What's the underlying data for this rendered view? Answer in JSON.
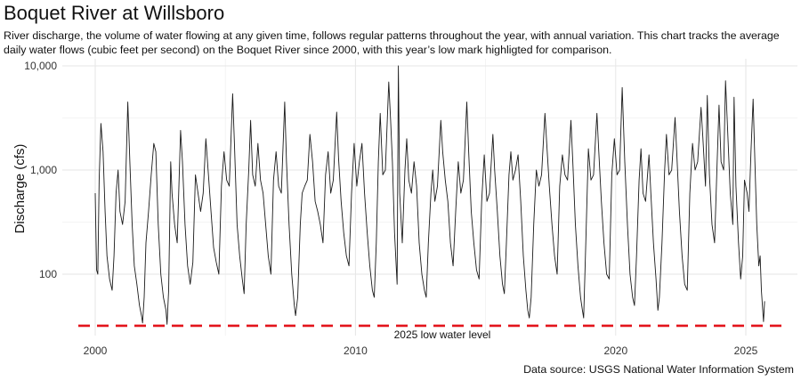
{
  "title": "Boquet River at Willsboro",
  "subtitle": "River discharge, the volume of water flowing at any given time, follows regular patterns throughout the year, with annual variation. This chart tracks the average daily water flows (cubic feet per second) on the Boquet River since 2000, with this year’s low mark highligted for comparison.",
  "caption": "Data source: USGS National Water Information System",
  "chart_data": {
    "type": "line",
    "title": "Boquet River at Willsboro",
    "xlabel": "",
    "ylabel": "Discharge (cfs)",
    "y_scale": "log10",
    "xlim": [
      1999.6,
      2026.0
    ],
    "ylim": [
      28,
      10000
    ],
    "x_ticks": [
      2000,
      2010,
      2020,
      2025
    ],
    "x_tick_labels": [
      "2000",
      "2010",
      "2020",
      "2025"
    ],
    "y_ticks": [
      100,
      1000,
      10000
    ],
    "y_tick_labels": [
      "100",
      "1,000",
      "10,000"
    ],
    "grid": true,
    "legend": "none",
    "line_color": "#1a1a1a",
    "reference_line": {
      "value": 32,
      "label": "2025 low water level",
      "color": "#e3141b",
      "style": "dashed"
    },
    "series": [
      {
        "values": [
          [
            2000.0,
            600
          ],
          [
            2000.05,
            110
          ],
          [
            2000.1,
            100
          ],
          [
            2000.15,
            800
          ],
          [
            2000.22,
            2800
          ],
          [
            2000.3,
            1500
          ],
          [
            2000.38,
            400
          ],
          [
            2000.45,
            150
          ],
          [
            2000.55,
            90
          ],
          [
            2000.65,
            70
          ],
          [
            2000.72,
            150
          ],
          [
            2000.8,
            600
          ],
          [
            2000.88,
            1000
          ],
          [
            2000.95,
            400
          ],
          [
            2001.05,
            300
          ],
          [
            2001.15,
            500
          ],
          [
            2001.25,
            4500
          ],
          [
            2001.33,
            1200
          ],
          [
            2001.42,
            300
          ],
          [
            2001.5,
            120
          ],
          [
            2001.6,
            80
          ],
          [
            2001.7,
            50
          ],
          [
            2001.78,
            40
          ],
          [
            2001.82,
            34
          ],
          [
            2001.88,
            60
          ],
          [
            2001.95,
            200
          ],
          [
            2002.05,
            400
          ],
          [
            2002.15,
            900
          ],
          [
            2002.25,
            1800
          ],
          [
            2002.33,
            1500
          ],
          [
            2002.42,
            300
          ],
          [
            2002.52,
            100
          ],
          [
            2002.62,
            60
          ],
          [
            2002.72,
            45
          ],
          [
            2002.76,
            33
          ],
          [
            2002.82,
            70
          ],
          [
            2002.9,
            1200
          ],
          [
            2002.95,
            600
          ],
          [
            2003.05,
            300
          ],
          [
            2003.15,
            200
          ],
          [
            2003.28,
            2400
          ],
          [
            2003.35,
            1200
          ],
          [
            2003.45,
            300
          ],
          [
            2003.55,
            120
          ],
          [
            2003.65,
            80
          ],
          [
            2003.75,
            130
          ],
          [
            2003.85,
            900
          ],
          [
            2003.95,
            600
          ],
          [
            2004.05,
            400
          ],
          [
            2004.15,
            600
          ],
          [
            2004.25,
            2000
          ],
          [
            2004.35,
            900
          ],
          [
            2004.45,
            400
          ],
          [
            2004.55,
            180
          ],
          [
            2004.65,
            130
          ],
          [
            2004.75,
            100
          ],
          [
            2004.85,
            700
          ],
          [
            2004.95,
            1500
          ],
          [
            2005.05,
            800
          ],
          [
            2005.15,
            700
          ],
          [
            2005.28,
            5400
          ],
          [
            2005.35,
            1800
          ],
          [
            2005.45,
            300
          ],
          [
            2005.55,
            150
          ],
          [
            2005.65,
            90
          ],
          [
            2005.72,
            65
          ],
          [
            2005.8,
            300
          ],
          [
            2005.9,
            1000
          ],
          [
            2005.97,
            3000
          ],
          [
            2006.05,
            900
          ],
          [
            2006.15,
            700
          ],
          [
            2006.25,
            1800
          ],
          [
            2006.35,
            800
          ],
          [
            2006.45,
            600
          ],
          [
            2006.55,
            300
          ],
          [
            2006.65,
            150
          ],
          [
            2006.75,
            100
          ],
          [
            2006.85,
            800
          ],
          [
            2006.95,
            1500
          ],
          [
            2007.05,
            700
          ],
          [
            2007.15,
            600
          ],
          [
            2007.28,
            4500
          ],
          [
            2007.35,
            1200
          ],
          [
            2007.45,
            300
          ],
          [
            2007.55,
            100
          ],
          [
            2007.65,
            50
          ],
          [
            2007.7,
            40
          ],
          [
            2007.78,
            60
          ],
          [
            2007.88,
            300
          ],
          [
            2007.95,
            600
          ],
          [
            2008.05,
            700
          ],
          [
            2008.15,
            800
          ],
          [
            2008.25,
            2200
          ],
          [
            2008.35,
            1200
          ],
          [
            2008.45,
            500
          ],
          [
            2008.55,
            400
          ],
          [
            2008.65,
            300
          ],
          [
            2008.75,
            200
          ],
          [
            2008.85,
            900
          ],
          [
            2008.95,
            1500
          ],
          [
            2009.05,
            600
          ],
          [
            2009.15,
            800
          ],
          [
            2009.28,
            3600
          ],
          [
            2009.35,
            1300
          ],
          [
            2009.45,
            500
          ],
          [
            2009.55,
            250
          ],
          [
            2009.65,
            150
          ],
          [
            2009.75,
            120
          ],
          [
            2009.85,
            600
          ],
          [
            2009.95,
            1800
          ],
          [
            2010.05,
            700
          ],
          [
            2010.15,
            1200
          ],
          [
            2010.25,
            1800
          ],
          [
            2010.35,
            600
          ],
          [
            2010.45,
            250
          ],
          [
            2010.55,
            120
          ],
          [
            2010.65,
            70
          ],
          [
            2010.72,
            60
          ],
          [
            2010.8,
            200
          ],
          [
            2010.88,
            1200
          ],
          [
            2010.95,
            3500
          ],
          [
            2011.05,
            900
          ],
          [
            2011.15,
            1000
          ],
          [
            2011.28,
            7000
          ],
          [
            2011.35,
            3000
          ],
          [
            2011.42,
            1200
          ],
          [
            2011.5,
            250
          ],
          [
            2011.6,
            80
          ],
          [
            2011.65,
            10000
          ],
          [
            2011.7,
            600
          ],
          [
            2011.8,
            200
          ],
          [
            2011.9,
            1000
          ],
          [
            2011.97,
            2000
          ],
          [
            2012.05,
            800
          ],
          [
            2012.15,
            600
          ],
          [
            2012.25,
            1200
          ],
          [
            2012.35,
            700
          ],
          [
            2012.45,
            200
          ],
          [
            2012.55,
            100
          ],
          [
            2012.65,
            70
          ],
          [
            2012.72,
            60
          ],
          [
            2012.8,
            200
          ],
          [
            2012.9,
            600
          ],
          [
            2012.97,
            1000
          ],
          [
            2013.05,
            500
          ],
          [
            2013.15,
            700
          ],
          [
            2013.28,
            3000
          ],
          [
            2013.35,
            1500
          ],
          [
            2013.45,
            800
          ],
          [
            2013.55,
            500
          ],
          [
            2013.65,
            200
          ],
          [
            2013.75,
            120
          ],
          [
            2013.85,
            400
          ],
          [
            2013.95,
            1200
          ],
          [
            2014.05,
            600
          ],
          [
            2014.15,
            800
          ],
          [
            2014.28,
            4500
          ],
          [
            2014.35,
            1500
          ],
          [
            2014.45,
            400
          ],
          [
            2014.55,
            200
          ],
          [
            2014.65,
            110
          ],
          [
            2014.75,
            90
          ],
          [
            2014.85,
            500
          ],
          [
            2014.95,
            1400
          ],
          [
            2015.05,
            500
          ],
          [
            2015.15,
            600
          ],
          [
            2015.28,
            2200
          ],
          [
            2015.35,
            1000
          ],
          [
            2015.45,
            400
          ],
          [
            2015.55,
            150
          ],
          [
            2015.65,
            80
          ],
          [
            2015.72,
            65
          ],
          [
            2015.8,
            200
          ],
          [
            2015.9,
            900
          ],
          [
            2015.97,
            1500
          ],
          [
            2016.05,
            800
          ],
          [
            2016.15,
            1000
          ],
          [
            2016.25,
            1400
          ],
          [
            2016.35,
            500
          ],
          [
            2016.45,
            150
          ],
          [
            2016.55,
            70
          ],
          [
            2016.62,
            45
          ],
          [
            2016.68,
            38
          ],
          [
            2016.75,
            60
          ],
          [
            2016.85,
            300
          ],
          [
            2016.95,
            1000
          ],
          [
            2017.05,
            700
          ],
          [
            2017.15,
            900
          ],
          [
            2017.28,
            3500
          ],
          [
            2017.35,
            1800
          ],
          [
            2017.45,
            700
          ],
          [
            2017.55,
            300
          ],
          [
            2017.65,
            150
          ],
          [
            2017.75,
            100
          ],
          [
            2017.85,
            700
          ],
          [
            2017.95,
            1400
          ],
          [
            2018.05,
            900
          ],
          [
            2018.15,
            800
          ],
          [
            2018.28,
            3000
          ],
          [
            2018.35,
            1200
          ],
          [
            2018.45,
            300
          ],
          [
            2018.55,
            120
          ],
          [
            2018.65,
            60
          ],
          [
            2018.72,
            45
          ],
          [
            2018.77,
            38
          ],
          [
            2018.85,
            200
          ],
          [
            2018.95,
            1600
          ],
          [
            2019.05,
            800
          ],
          [
            2019.15,
            900
          ],
          [
            2019.28,
            3500
          ],
          [
            2019.35,
            1500
          ],
          [
            2019.45,
            500
          ],
          [
            2019.55,
            200
          ],
          [
            2019.65,
            100
          ],
          [
            2019.75,
            90
          ],
          [
            2019.85,
            900
          ],
          [
            2019.95,
            2000
          ],
          [
            2020.05,
            900
          ],
          [
            2020.15,
            1000
          ],
          [
            2020.25,
            6200
          ],
          [
            2020.35,
            1200
          ],
          [
            2020.45,
            300
          ],
          [
            2020.55,
            100
          ],
          [
            2020.65,
            60
          ],
          [
            2020.72,
            50
          ],
          [
            2020.8,
            150
          ],
          [
            2020.9,
            800
          ],
          [
            2020.97,
            1600
          ],
          [
            2021.05,
            600
          ],
          [
            2021.15,
            500
          ],
          [
            2021.28,
            1400
          ],
          [
            2021.35,
            600
          ],
          [
            2021.45,
            200
          ],
          [
            2021.55,
            90
          ],
          [
            2021.62,
            45
          ],
          [
            2021.68,
            60
          ],
          [
            2021.78,
            200
          ],
          [
            2021.88,
            1000
          ],
          [
            2021.95,
            2200
          ],
          [
            2022.05,
            900
          ],
          [
            2022.15,
            1000
          ],
          [
            2022.28,
            3200
          ],
          [
            2022.35,
            1400
          ],
          [
            2022.45,
            400
          ],
          [
            2022.55,
            150
          ],
          [
            2022.65,
            80
          ],
          [
            2022.75,
            70
          ],
          [
            2022.85,
            600
          ],
          [
            2022.95,
            1800
          ],
          [
            2023.05,
            1000
          ],
          [
            2023.15,
            1200
          ],
          [
            2023.28,
            4000
          ],
          [
            2023.35,
            2000
          ],
          [
            2023.45,
            700
          ],
          [
            2023.52,
            5200
          ],
          [
            2023.6,
            900
          ],
          [
            2023.7,
            300
          ],
          [
            2023.8,
            200
          ],
          [
            2023.9,
            1200
          ],
          [
            2023.97,
            4200
          ],
          [
            2024.05,
            1200
          ],
          [
            2024.15,
            1000
          ],
          [
            2024.22,
            7200
          ],
          [
            2024.3,
            2500
          ],
          [
            2024.4,
            600
          ],
          [
            2024.5,
            300
          ],
          [
            2024.55,
            5000
          ],
          [
            2024.62,
            700
          ],
          [
            2024.72,
            200
          ],
          [
            2024.8,
            90
          ],
          [
            2024.88,
            150
          ],
          [
            2024.95,
            800
          ],
          [
            2025.05,
            600
          ],
          [
            2025.12,
            400
          ],
          [
            2025.2,
            1500
          ],
          [
            2025.28,
            4800
          ],
          [
            2025.35,
            1200
          ],
          [
            2025.42,
            300
          ],
          [
            2025.5,
            120
          ],
          [
            2025.55,
            150
          ],
          [
            2025.6,
            70
          ],
          [
            2025.65,
            45
          ],
          [
            2025.68,
            35
          ],
          [
            2025.72,
            55
          ]
        ]
      }
    ]
  }
}
